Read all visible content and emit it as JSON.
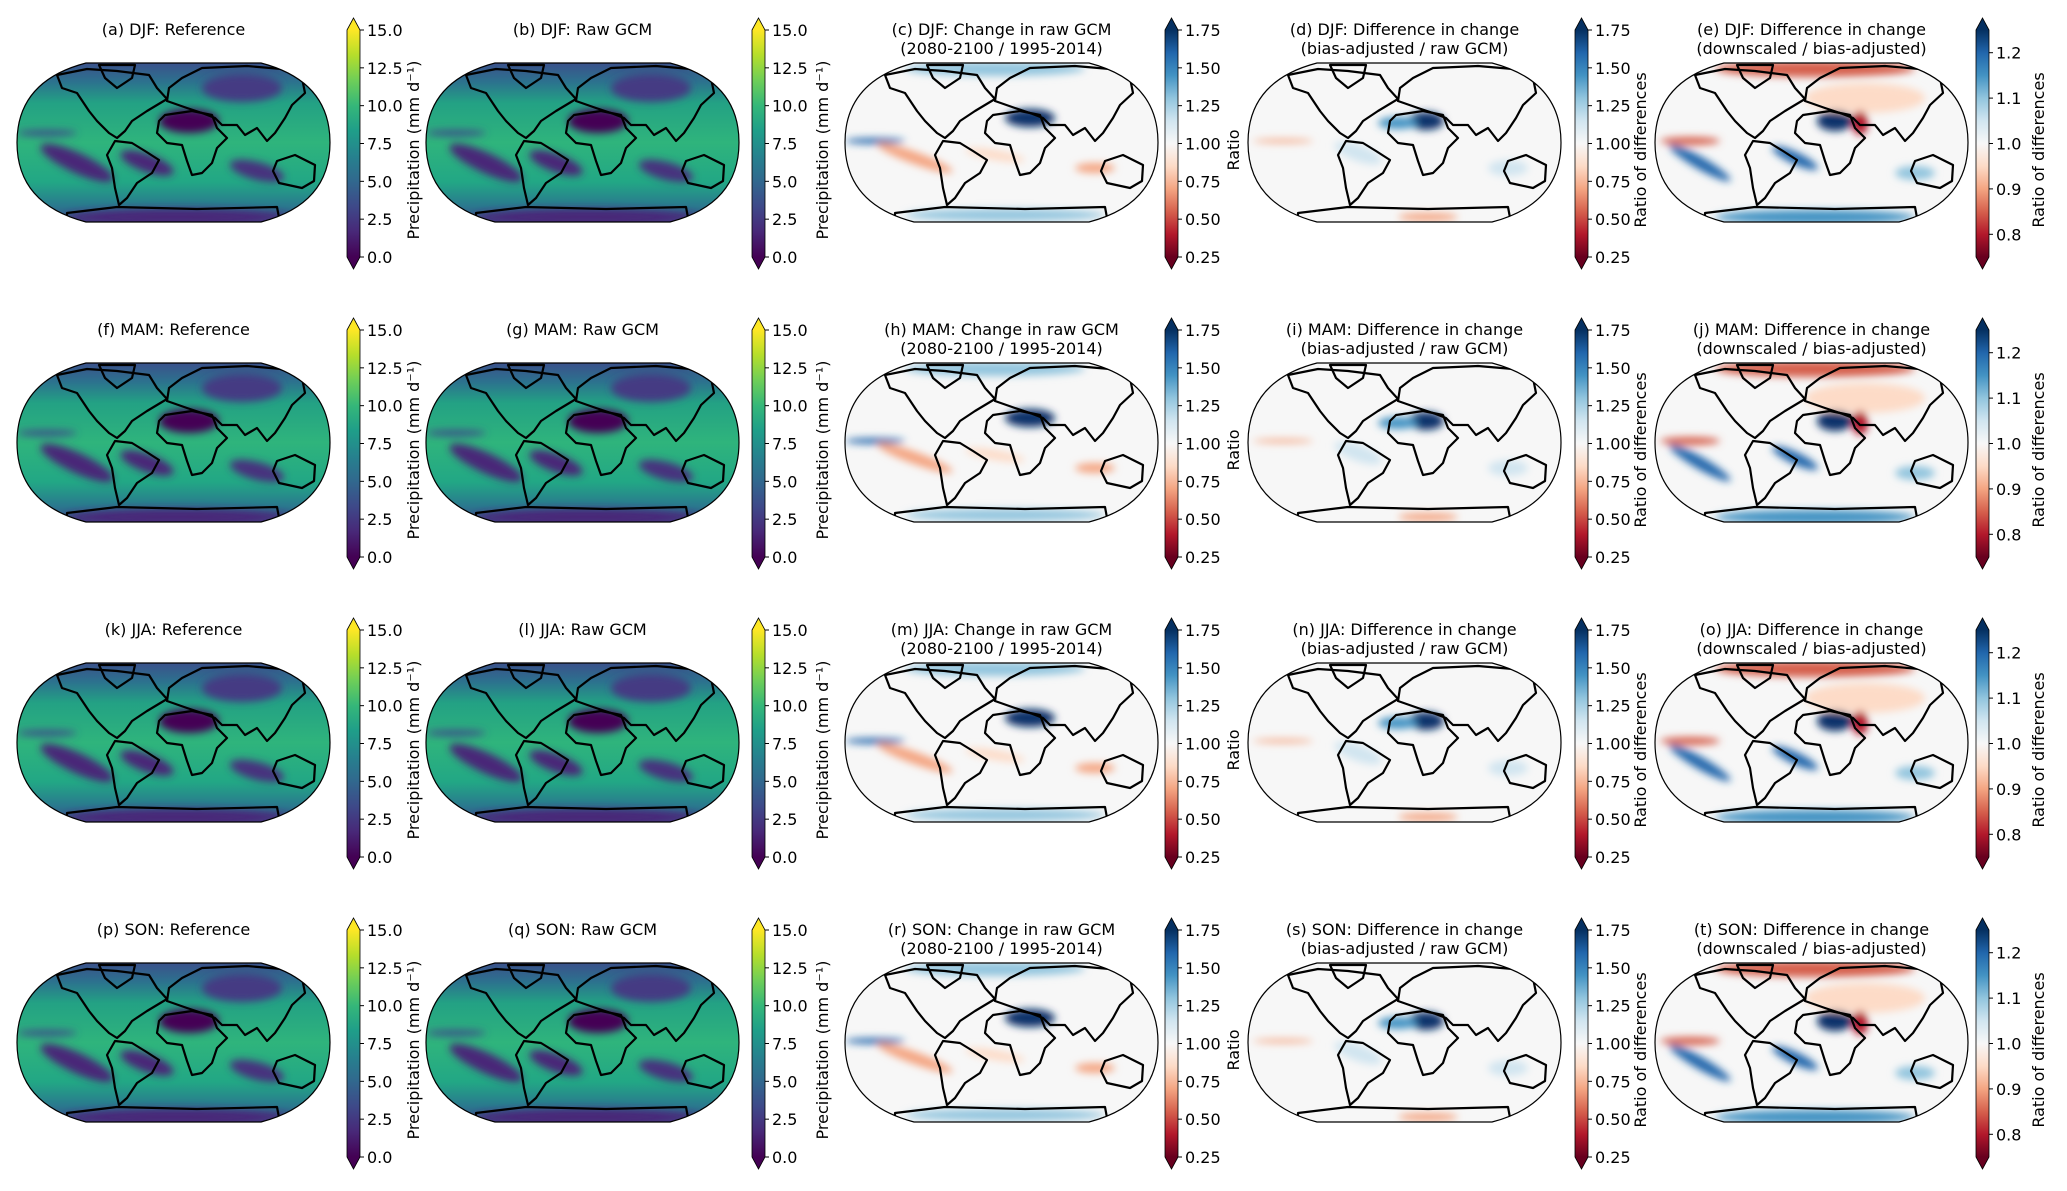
{
  "figure": {
    "panels": [
      {
        "title": [
          "(a) DJF: Reference"
        ],
        "kind": "precip",
        "cbar": "precip",
        "cbar_label": "Precipitation (mm d⁻¹)"
      },
      {
        "title": [
          "(b) DJF: Raw GCM"
        ],
        "kind": "precip",
        "cbar": "precip",
        "cbar_label": "Precipitation (mm d⁻¹)"
      },
      {
        "title": [
          "(c) DJF: Change in raw GCM",
          "(2080-2100 / 1995-2014)"
        ],
        "kind": "change",
        "cbar": "ratio",
        "cbar_label": "Ratio"
      },
      {
        "title": [
          "(d) DJF: Difference in change",
          "(bias-adjusted / raw GCM)"
        ],
        "kind": "diff1",
        "cbar": "ratio",
        "cbar_label": "Ratio of differences"
      },
      {
        "title": [
          "(e) DJF: Difference in change",
          "(downscaled / bias-adjusted)"
        ],
        "kind": "diff2",
        "cbar": "narrow",
        "cbar_label": "Ratio of differences"
      },
      {
        "title": [
          "(f) MAM: Reference"
        ],
        "kind": "precip",
        "cbar": "precip",
        "cbar_label": "Precipitation (mm d⁻¹)"
      },
      {
        "title": [
          "(g) MAM: Raw GCM"
        ],
        "kind": "precip",
        "cbar": "precip",
        "cbar_label": "Precipitation (mm d⁻¹)"
      },
      {
        "title": [
          "(h) MAM: Change in raw GCM",
          "(2080-2100 / 1995-2014)"
        ],
        "kind": "change",
        "cbar": "ratio",
        "cbar_label": "Ratio"
      },
      {
        "title": [
          "(i) MAM: Difference in change",
          "(bias-adjusted / raw GCM)"
        ],
        "kind": "diff1",
        "cbar": "ratio",
        "cbar_label": "Ratio of differences"
      },
      {
        "title": [
          "(j) MAM: Difference in change",
          "(downscaled / bias-adjusted)"
        ],
        "kind": "diff2",
        "cbar": "narrow",
        "cbar_label": "Ratio of differences"
      },
      {
        "title": [
          "(k) JJA: Reference"
        ],
        "kind": "precip",
        "cbar": "precip",
        "cbar_label": "Precipitation (mm d⁻¹)"
      },
      {
        "title": [
          "(l) JJA: Raw GCM"
        ],
        "kind": "precip",
        "cbar": "precip",
        "cbar_label": "Precipitation (mm d⁻¹)"
      },
      {
        "title": [
          "(m) JJA: Change in raw GCM",
          "(2080-2100 / 1995-2014)"
        ],
        "kind": "change",
        "cbar": "ratio",
        "cbar_label": "Ratio"
      },
      {
        "title": [
          "(n) JJA: Difference in change",
          "(bias-adjusted / raw GCM)"
        ],
        "kind": "diff1",
        "cbar": "ratio",
        "cbar_label": "Ratio of differences"
      },
      {
        "title": [
          "(o) JJA: Difference in change",
          "(downscaled / bias-adjusted)"
        ],
        "kind": "diff2",
        "cbar": "narrow",
        "cbar_label": "Ratio of differences"
      },
      {
        "title": [
          "(p) SON: Reference"
        ],
        "kind": "precip",
        "cbar": "precip",
        "cbar_label": "Precipitation (mm d⁻¹)"
      },
      {
        "title": [
          "(q) SON: Raw GCM"
        ],
        "kind": "precip",
        "cbar": "precip",
        "cbar_label": "Precipitation (mm d⁻¹)"
      },
      {
        "title": [
          "(r) SON: Change in raw GCM",
          "(2080-2100 / 1995-2014)"
        ],
        "kind": "change",
        "cbar": "ratio",
        "cbar_label": "Ratio"
      },
      {
        "title": [
          "(s) SON: Difference in change",
          "(bias-adjusted / raw GCM)"
        ],
        "kind": "diff1",
        "cbar": "ratio",
        "cbar_label": "Ratio of differences"
      },
      {
        "title": [
          "(t) SON: Difference in change",
          "(downscaled / bias-adjusted)"
        ],
        "kind": "diff2",
        "cbar": "narrow",
        "cbar_label": "Ratio of differences"
      }
    ],
    "colorbars": {
      "precip": {
        "cmap": "viridis",
        "range": [
          0,
          15
        ],
        "extend": "both",
        "ticks": [
          "0.0",
          "2.5",
          "5.0",
          "7.5",
          "10.0",
          "12.5",
          "15.0"
        ],
        "tick_values": [
          0,
          2.5,
          5,
          7.5,
          10,
          12.5,
          15
        ]
      },
      "ratio": {
        "cmap": "RdBu",
        "range": [
          0.25,
          1.75
        ],
        "extend": "both",
        "ticks": [
          "0.25",
          "0.50",
          "0.75",
          "1.00",
          "1.25",
          "1.50",
          "1.75"
        ],
        "tick_values": [
          0.25,
          0.5,
          0.75,
          1.0,
          1.25,
          1.5,
          1.75
        ]
      },
      "narrow": {
        "cmap": "RdBu",
        "range": [
          0.75,
          1.25
        ],
        "extend": "both",
        "ticks": [
          "0.8",
          "0.9",
          "1.0",
          "1.1",
          "1.2"
        ],
        "tick_values": [
          0.8,
          0.9,
          1.0,
          1.1,
          1.2
        ]
      }
    },
    "colors": {
      "viridis": [
        "#440154",
        "#482878",
        "#3e4989",
        "#31688e",
        "#26828e",
        "#1f9e89",
        "#35b779",
        "#6ece58",
        "#b5de2b",
        "#fde725"
      ],
      "rdbu": [
        "#67001f",
        "#b2182b",
        "#d6604d",
        "#f4a582",
        "#fddbc7",
        "#f7f7f7",
        "#d1e5f0",
        "#92c5de",
        "#4393c3",
        "#2166ac",
        "#053061"
      ]
    }
  }
}
